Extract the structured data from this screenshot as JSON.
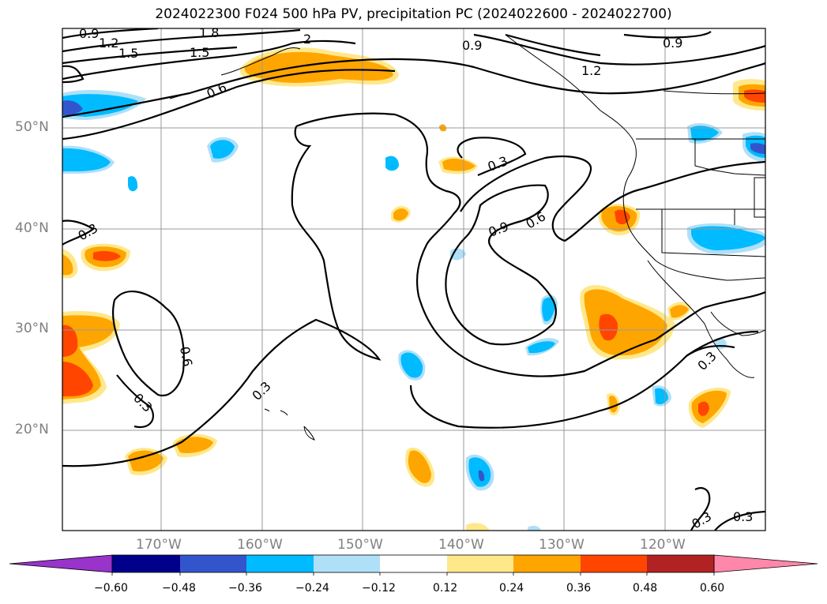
{
  "title": "2024022300 F024 500 hPa PV, precipitation PC (2024022600 - 2024022700)",
  "lat_labels": [
    "50°N",
    "40°N",
    "30°N",
    "20°N"
  ],
  "lon_labels": [
    "170°W",
    "160°W",
    "150°W",
    "140°W",
    "130°W",
    "120°W"
  ],
  "contour_labels": [
    "0.9",
    "1.2",
    "1.8",
    "1.5",
    "1.5",
    "2",
    "0.6",
    "0.9",
    "1.2",
    "0.9",
    "0.3",
    "0.9",
    "0.6",
    "0.3",
    "0.6",
    "0.3",
    "0.3",
    "0.3",
    "0.3",
    "0.3"
  ],
  "colorbar": {
    "ticks": [
      "−0.60",
      "−0.48",
      "−0.36",
      "−0.24",
      "−0.12",
      "0.12",
      "0.24",
      "0.36",
      "0.48",
      "0.60"
    ],
    "colors": [
      "#9933cc",
      "#00008b",
      "#3355cc",
      "#00bbff",
      "#aee0f8",
      "#ffffff",
      "#ffe88a",
      "#ffa500",
      "#ff4500",
      "#b22222",
      "#ff88aa"
    ]
  }
}
